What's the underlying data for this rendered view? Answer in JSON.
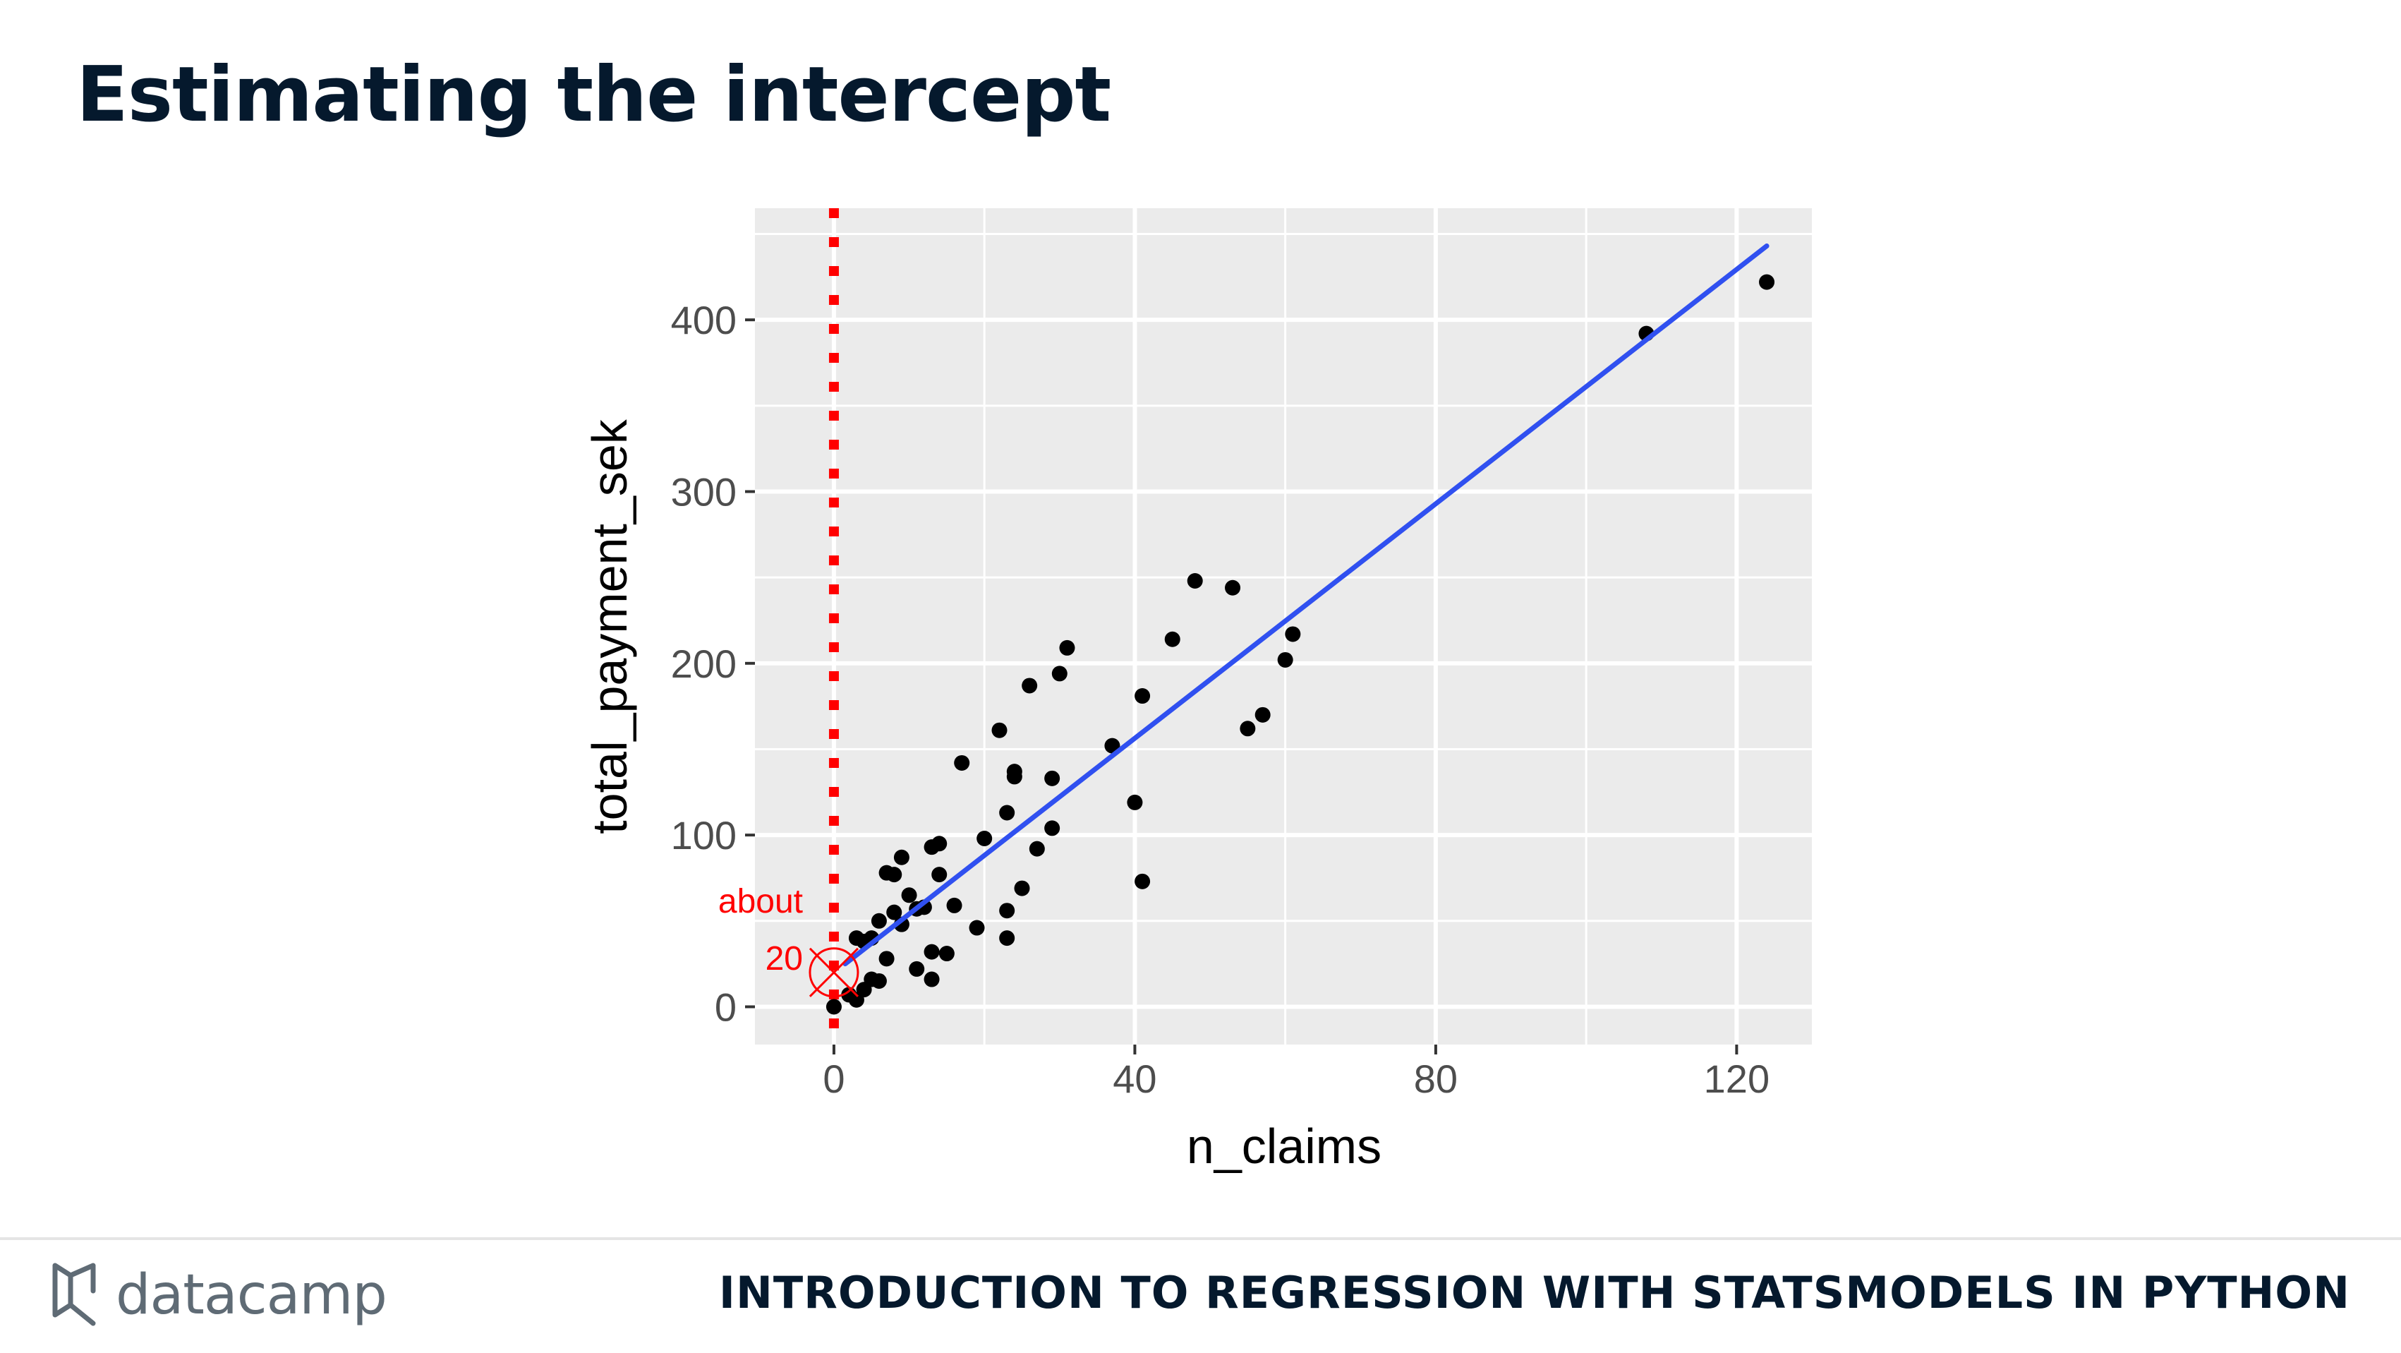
{
  "slide": {
    "title": "Estimating the intercept",
    "footer_course": "INTRODUCTION TO REGRESSION WITH STATSMODELS IN PYTHON",
    "brand": "datacamp",
    "brand_icon": "datacamp-logo-icon"
  },
  "colors": {
    "title": "#05192d",
    "panel": "#ebebeb",
    "grid": "#ffffff",
    "points": "#000000",
    "trend": "#3050f0",
    "annotation": "#ff0000"
  },
  "chart_data": {
    "type": "scatter",
    "xlabel": "n_claims",
    "ylabel": "total_payment_sek",
    "xlim": [
      -10.5,
      130
    ],
    "ylim": [
      -22,
      465
    ],
    "x_ticks": [
      0,
      40,
      80,
      120
    ],
    "y_ticks": [
      0,
      100,
      200,
      300,
      400
    ],
    "grid": true,
    "points": [
      [
        0,
        0
      ],
      [
        2,
        7
      ],
      [
        3,
        4
      ],
      [
        3,
        40
      ],
      [
        4,
        10
      ],
      [
        4,
        38
      ],
      [
        5,
        16
      ],
      [
        5,
        40
      ],
      [
        6,
        50
      ],
      [
        6,
        15
      ],
      [
        7,
        28
      ],
      [
        7,
        78
      ],
      [
        8,
        77
      ],
      [
        8,
        55
      ],
      [
        9,
        48
      ],
      [
        9,
        87
      ],
      [
        10,
        65
      ],
      [
        11,
        57
      ],
      [
        11,
        22
      ],
      [
        12,
        58
      ],
      [
        13,
        93
      ],
      [
        13,
        32
      ],
      [
        13,
        16
      ],
      [
        14,
        95
      ],
      [
        14,
        77
      ],
      [
        15,
        31
      ],
      [
        16,
        59
      ],
      [
        17,
        142
      ],
      [
        19,
        46
      ],
      [
        20,
        98
      ],
      [
        22,
        161
      ],
      [
        23,
        113
      ],
      [
        23,
        40
      ],
      [
        23,
        56
      ],
      [
        24,
        137
      ],
      [
        24,
        134
      ],
      [
        25,
        69
      ],
      [
        26,
        187
      ],
      [
        27,
        92
      ],
      [
        29,
        133
      ],
      [
        29,
        104
      ],
      [
        30,
        194
      ],
      [
        31,
        209
      ],
      [
        37,
        152
      ],
      [
        40,
        119
      ],
      [
        41,
        181
      ],
      [
        41,
        73
      ],
      [
        45,
        214
      ],
      [
        48,
        248
      ],
      [
        53,
        244
      ],
      [
        55,
        162
      ],
      [
        57,
        170
      ],
      [
        60,
        202
      ],
      [
        61,
        217
      ],
      [
        108,
        392
      ],
      [
        124,
        422
      ]
    ],
    "trendline": {
      "x": [
        1.5,
        124
      ],
      "y": [
        25,
        443
      ]
    },
    "vline_x": 0,
    "intercept_marker": {
      "x": 0,
      "y": 20
    },
    "annotations": [
      "about",
      "20"
    ]
  }
}
